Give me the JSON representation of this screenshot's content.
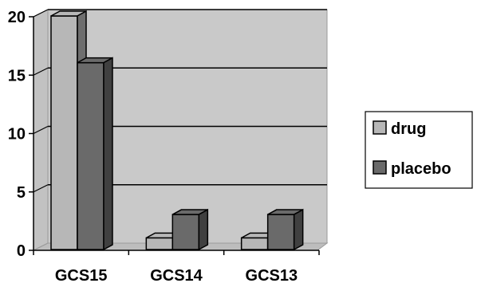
{
  "chart_data": {
    "type": "bar",
    "categories": [
      "GCS15",
      "GCS14",
      "GCS13"
    ],
    "series": [
      {
        "name": "drug",
        "values": [
          20,
          1,
          1
        ],
        "color": "#b7b7b7"
      },
      {
        "name": "placebo",
        "values": [
          16,
          3,
          3
        ],
        "color": "#6a6a6a"
      }
    ],
    "ylim": [
      0,
      20
    ],
    "yticks": [
      "0",
      "5",
      "10",
      "15",
      "20"
    ],
    "grid": true,
    "legend_position": "right",
    "background": "#c9c9c9",
    "three_d": true
  }
}
